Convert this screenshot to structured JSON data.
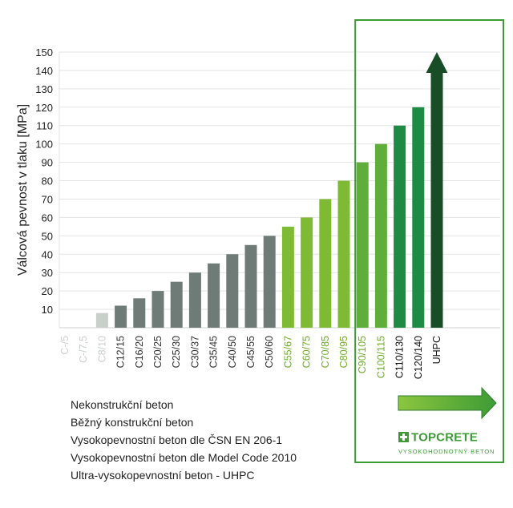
{
  "chart_data": {
    "type": "bar",
    "ylabel": "Válcová pevnost v tlaku [MPa]",
    "ylim": [
      0,
      150
    ],
    "yticks": [
      10,
      20,
      30,
      40,
      50,
      60,
      70,
      80,
      90,
      100,
      110,
      120,
      130,
      140,
      150
    ],
    "grid": true,
    "categories": [
      "C-/5",
      "C-/7,5",
      "C8/10",
      "C12/15",
      "C16/20",
      "C20/25",
      "C25/30",
      "C30/37",
      "C35/45",
      "C40/50",
      "C45/55",
      "C50/60",
      "C55/67",
      "C60/75",
      "C70/85",
      "C80/95",
      "C90/105",
      "C100/115",
      "C110/130",
      "C120/140",
      "UHPC"
    ],
    "values": [
      null,
      null,
      8,
      12,
      16,
      20,
      25,
      30,
      35,
      40,
      45,
      50,
      55,
      60,
      70,
      80,
      90,
      100,
      110,
      120,
      150
    ],
    "groups": [
      {
        "name": "Nekonstrukční beton",
        "color": "#c9d0cc",
        "categories": [
          "C-/5",
          "C-/7,5",
          "C8/10"
        ]
      },
      {
        "name": "Běžný konstrukční beton",
        "color": "#6f7b76",
        "categories": [
          "C12/15",
          "C16/20",
          "C20/25",
          "C25/30",
          "C30/37",
          "C35/45",
          "C40/50",
          "C45/55",
          "C50/60"
        ]
      },
      {
        "name": "Vysokopevnostní beton dle ČSN EN 206-1",
        "color": "#7fba35",
        "categories": [
          "C55/67",
          "C60/75",
          "C70/85",
          "C80/95"
        ]
      },
      {
        "name": "Vysokopevnostní beton dle Model Code 2010",
        "color": "#1e8a44",
        "categories": [
          "C90/105",
          "C100/115",
          "C110/130",
          "C120/140"
        ]
      },
      {
        "name": "Ultra-vysokopevnostní beton - UHPC",
        "color": "#184d26",
        "categories": [
          "UHPC"
        ]
      }
    ],
    "label_colors": [
      "#c9d0cc",
      "#c9d0cc",
      "#c9d0cc",
      "#333333",
      "#333333",
      "#333333",
      "#333333",
      "#333333",
      "#333333",
      "#333333",
      "#333333",
      "#333333",
      "#6fae2a",
      "#6fae2a",
      "#6fae2a",
      "#6fae2a",
      "#6fae2a",
      "#6fae2a",
      "#111111",
      "#111111",
      "#111111"
    ],
    "bar_colors": [
      "#c9d0cc",
      "#c9d0cc",
      "#c9d0cc",
      "#6f7b76",
      "#6f7b76",
      "#6f7b76",
      "#6f7b76",
      "#6f7b76",
      "#6f7b76",
      "#6f7b76",
      "#6f7b76",
      "#6f7b76",
      "#7fba35",
      "#7fba35",
      "#7fba35",
      "#7fba35",
      "#5fae3a",
      "#5fae3a",
      "#1e8a44",
      "#1e8a44",
      "#184d26"
    ],
    "highlight_color": "#3d9b35",
    "arrow_colors": [
      "#8cc63f",
      "#3d9b35"
    ]
  },
  "legend": {
    "items": [
      "Nekonstrukční beton",
      "Běžný konstrukční beton",
      "Vysokopevnostní beton dle ČSN EN 206-1",
      "Vysokopevnostní beton dle Model Code 2010",
      "Ultra-vysokopevnostní beton - UHPC"
    ]
  },
  "logo": {
    "name": "TOPCRETE",
    "tagline": "VYSOKOHODNOTNÝ BETON"
  }
}
